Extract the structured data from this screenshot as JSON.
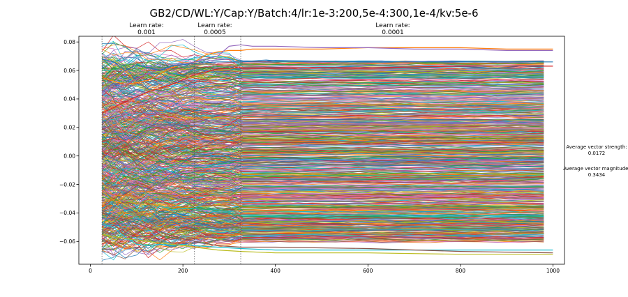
{
  "chart_data": {
    "type": "line",
    "title": "GB2/CD/WL:Y/Cap:Y/Batch:4/lr:1e-3:200,5e-4:300,1e-4/kv:5e-6",
    "xlabel": "",
    "ylabel": "",
    "xlim": [
      -25,
      1025
    ],
    "ylim": [
      -0.076,
      0.084
    ],
    "x_ticks": [
      0,
      200,
      400,
      600,
      800,
      1000
    ],
    "x_tick_labels": [
      "0",
      "200",
      "400",
      "600",
      "800",
      "1000"
    ],
    "y_ticks": [
      -0.06,
      -0.04,
      -0.02,
      0.0,
      0.02,
      0.04,
      0.06,
      0.08
    ],
    "y_tick_labels": [
      "−0.06",
      "−0.04",
      "−0.02",
      "0.00",
      "0.02",
      "0.04",
      "0.06",
      "0.08"
    ],
    "grid": false,
    "legend": "none",
    "x_range": [
      25,
      1000
    ],
    "learn_rate_changes": [
      {
        "x": 25,
        "label": "Learn rate:",
        "rate": "0.001"
      },
      {
        "x": 225,
        "label": "Learn rate:",
        "rate": "0.0005"
      },
      {
        "x": 325,
        "label": "Learn rate:",
        "rate": "0.0001"
      }
    ],
    "side_stats": [
      {
        "label": "Average vector strength:",
        "value": "0.0172"
      },
      {
        "label": "Average vector magnitude:",
        "value": "0.3434"
      }
    ],
    "series_summary": {
      "count": 768,
      "final_range": [
        -0.069,
        0.075
      ],
      "start_spread": [
        -0.06,
        0.068
      ]
    },
    "highlight_series": [
      {
        "color": "#ff7f0e",
        "x": [
          25,
          75,
          125,
          175,
          225,
          250,
          275,
          300,
          325,
          350,
          400,
          500,
          600,
          700,
          800,
          900,
          1000
        ],
        "y": [
          0.055,
          0.05,
          0.053,
          0.062,
          0.066,
          0.071,
          0.073,
          0.074,
          0.074,
          0.075,
          0.075,
          0.075,
          0.076,
          0.076,
          0.076,
          0.075,
          0.075
        ]
      },
      {
        "color": "#9467bd",
        "x": [
          25,
          75,
          125,
          175,
          225,
          275,
          300,
          325,
          350,
          400,
          500,
          600,
          700,
          800,
          900,
          1000
        ],
        "y": [
          0.045,
          0.05,
          0.058,
          0.063,
          0.066,
          0.07,
          0.077,
          0.078,
          0.077,
          0.077,
          0.076,
          0.076,
          0.075,
          0.075,
          0.074,
          0.074
        ]
      },
      {
        "color": "#1f77b4",
        "x": [
          25,
          50,
          75,
          100,
          125,
          150,
          175,
          225,
          275,
          325,
          400,
          600,
          800,
          1000
        ],
        "y": [
          0.068,
          0.066,
          0.06,
          0.064,
          0.062,
          0.06,
          0.063,
          0.065,
          0.066,
          0.066,
          0.067,
          0.066,
          0.066,
          0.066
        ]
      },
      {
        "color": "#17becf",
        "x": [
          25,
          50,
          75,
          100,
          125,
          150,
          175,
          200,
          225,
          275,
          325,
          400,
          600,
          800,
          1000
        ],
        "y": [
          -0.048,
          -0.05,
          -0.057,
          -0.062,
          -0.063,
          -0.062,
          -0.063,
          -0.062,
          -0.063,
          -0.064,
          -0.065,
          -0.066,
          -0.066,
          -0.066,
          -0.066
        ]
      },
      {
        "color": "#bcbd22",
        "x": [
          25,
          75,
          125,
          175,
          225,
          275,
          325,
          400,
          600,
          800,
          1000
        ],
        "y": [
          -0.055,
          -0.058,
          -0.06,
          -0.062,
          -0.064,
          -0.066,
          -0.067,
          -0.068,
          -0.068,
          -0.069,
          -0.069
        ]
      },
      {
        "color": "#8c564b",
        "x": [
          25,
          75,
          125,
          175,
          225,
          275,
          325,
          400,
          600,
          800,
          1000
        ],
        "y": [
          -0.04,
          -0.045,
          -0.05,
          -0.056,
          -0.06,
          -0.063,
          -0.064,
          -0.064,
          -0.065,
          -0.067,
          -0.068
        ]
      },
      {
        "color": "#d62728",
        "x": [
          25,
          75,
          125,
          175,
          225,
          275,
          325,
          400,
          600,
          800,
          1000
        ],
        "y": [
          0.03,
          0.038,
          0.045,
          0.05,
          0.057,
          0.061,
          0.062,
          0.062,
          0.062,
          0.063,
          0.063
        ]
      }
    ],
    "palette": [
      "#1f77b4",
      "#ff7f0e",
      "#2ca02c",
      "#d62728",
      "#9467bd",
      "#8c564b",
      "#e377c2",
      "#7f7f7f",
      "#bcbd22",
      "#17becf"
    ]
  }
}
